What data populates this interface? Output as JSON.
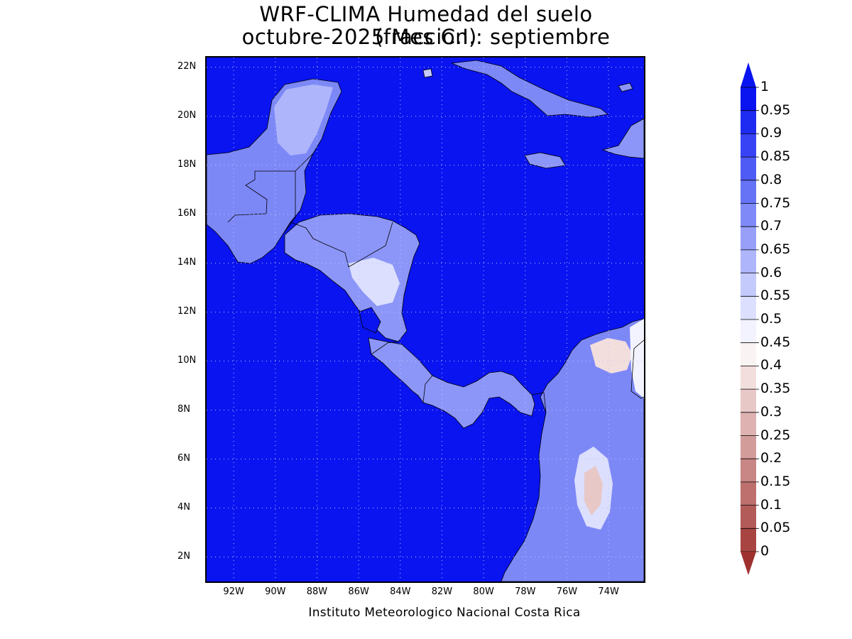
{
  "title": {
    "line1": "WRF-CLIMA Humedad del suelo (fraccion)",
    "line2": "octubre-2025 Mes C.I.: septiembre"
  },
  "credit": "Instituto Meteorologico Nacional Costa Rica",
  "colors": {
    "ocean": "#0a14f0",
    "grid": "#bcc3ff",
    "coast": "#000000"
  },
  "map": {
    "lon_range": [
      -93.3,
      -72.3
    ],
    "lat_range": [
      1.0,
      22.4
    ],
    "lat_ticks": [
      {
        "value": 22,
        "label": "22N"
      },
      {
        "value": 20,
        "label": "20N"
      },
      {
        "value": 18,
        "label": "18N"
      },
      {
        "value": 16,
        "label": "16N"
      },
      {
        "value": 14,
        "label": "14N"
      },
      {
        "value": 12,
        "label": "12N"
      },
      {
        "value": 10,
        "label": "10N"
      },
      {
        "value": 8,
        "label": "8N"
      },
      {
        "value": 6,
        "label": "6N"
      },
      {
        "value": 4,
        "label": "4N"
      },
      {
        "value": 2,
        "label": "2N"
      }
    ],
    "lon_ticks": [
      {
        "value": -92,
        "label": "92W"
      },
      {
        "value": -90,
        "label": "90W"
      },
      {
        "value": -88,
        "label": "88W"
      },
      {
        "value": -86,
        "label": "86W"
      },
      {
        "value": -84,
        "label": "84W"
      },
      {
        "value": -82,
        "label": "82W"
      },
      {
        "value": -80,
        "label": "80W"
      },
      {
        "value": -78,
        "label": "78W"
      },
      {
        "value": -76,
        "label": "76W"
      },
      {
        "value": -74,
        "label": "74W"
      }
    ]
  },
  "colorbar": {
    "levels": [
      {
        "label": "1",
        "color": "#0a14f0"
      },
      {
        "label": "0.95",
        "color": "#1e2cf2"
      },
      {
        "label": "0.9",
        "color": "#3743f4"
      },
      {
        "label": "0.85",
        "color": "#4f5bf5"
      },
      {
        "label": "0.8",
        "color": "#6673f6"
      },
      {
        "label": "0.75",
        "color": "#7f8af8"
      },
      {
        "label": "0.7",
        "color": "#979ff9"
      },
      {
        "label": "0.65",
        "color": "#aeb5fa"
      },
      {
        "label": "0.6",
        "color": "#c5cafc"
      },
      {
        "label": "0.55",
        "color": "#dcdffd"
      },
      {
        "label": "0.5",
        "color": "#f2f3fe"
      },
      {
        "label": "0.45",
        "color": "#faf3f3"
      },
      {
        "label": "0.4",
        "color": "#f2dedd"
      },
      {
        "label": "0.35",
        "color": "#e8c8c7"
      },
      {
        "label": "0.3",
        "color": "#ddb2b0"
      },
      {
        "label": "0.25",
        "color": "#d29c9a"
      },
      {
        "label": "0.2",
        "color": "#c88684"
      },
      {
        "label": "0.15",
        "color": "#bd706e"
      },
      {
        "label": "0.1",
        "color": "#b25b58"
      },
      {
        "label": "0.05",
        "color": "#a84542"
      },
      {
        "label": "0",
        "color": "#9e312e"
      }
    ],
    "max_arrow_color": "#0a14f0",
    "min_arrow_color": "#9e312e"
  }
}
